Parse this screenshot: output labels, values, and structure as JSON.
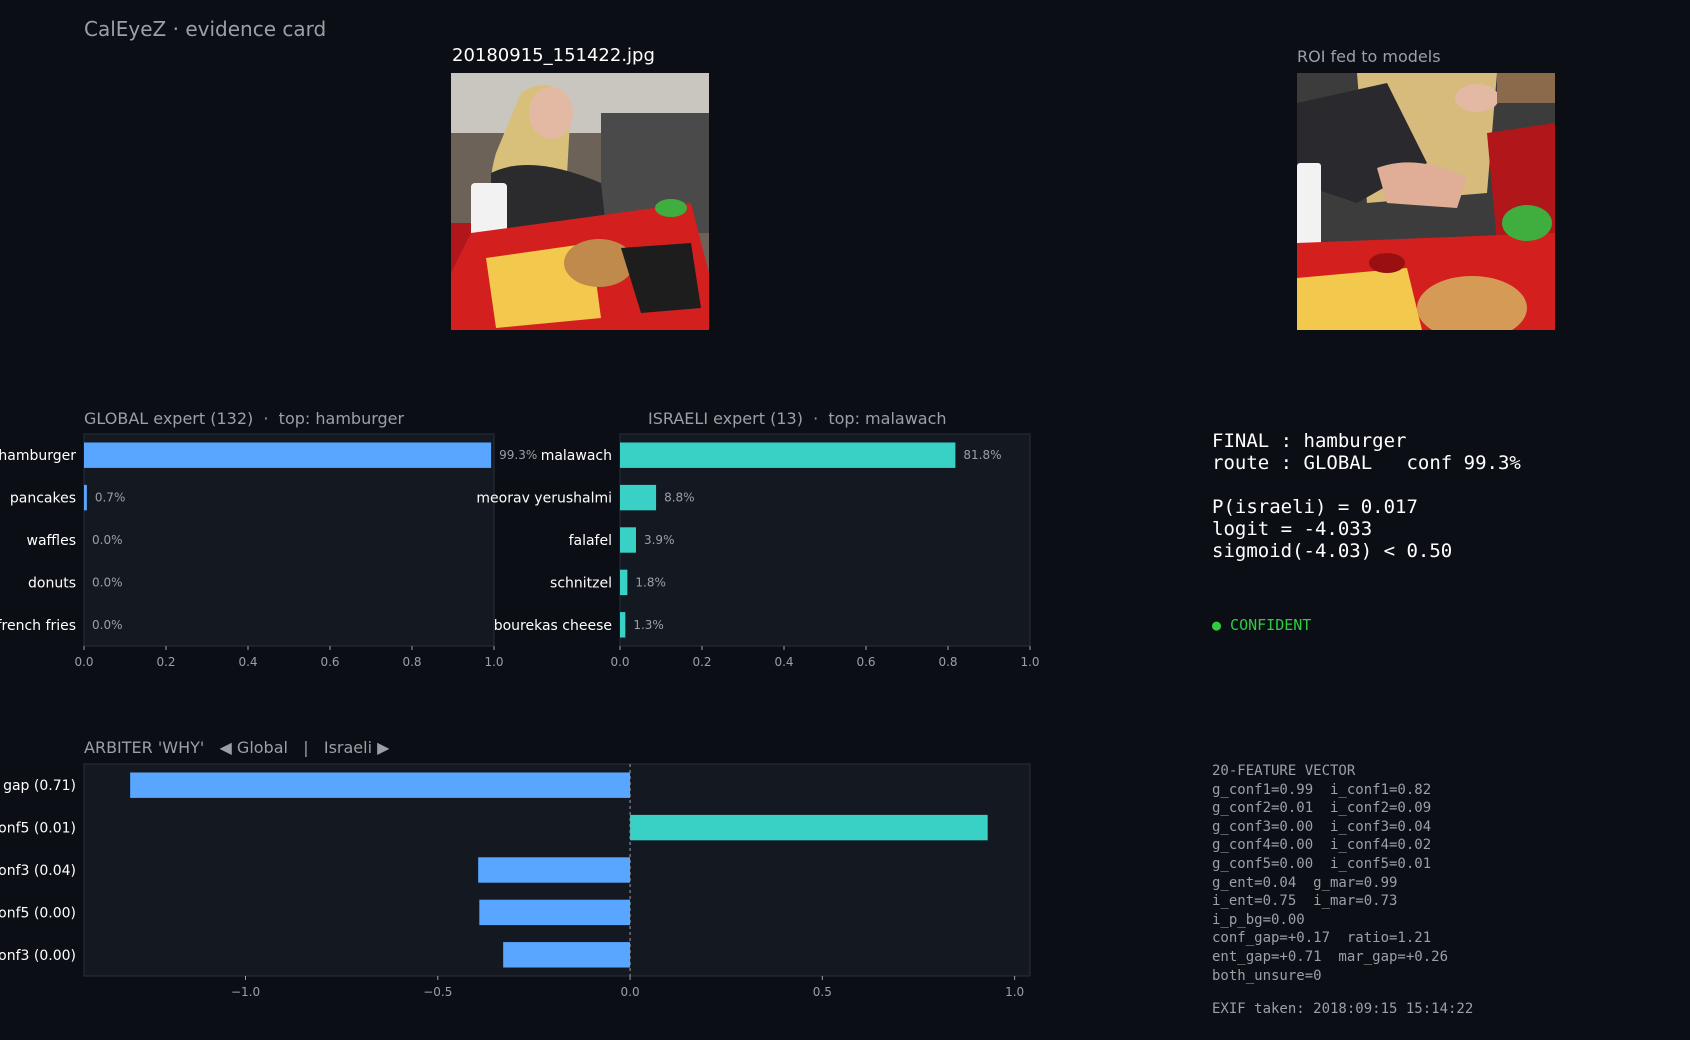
{
  "header": {
    "title": "CalEyeZ · evidence card"
  },
  "images": {
    "main_title": "20180915_151422.jpg",
    "roi_title": "ROI fed to models"
  },
  "colors": {
    "background": "#0b0e14",
    "panel": "#131821",
    "global_bar": "#58a6ff",
    "israeli_bar": "#39d0c5",
    "confident": "#2ecc40"
  },
  "chart_data": [
    {
      "type": "bar",
      "orientation": "horizontal",
      "title": "GLOBAL expert (132)  ·  top: hamburger",
      "categories": [
        "hamburger",
        "pancakes",
        "waffles",
        "donuts",
        "french fries"
      ],
      "values": [
        0.993,
        0.007,
        0.0,
        0.0,
        0.0
      ],
      "data_labels": [
        "99.3%",
        "0.7%",
        "0.0%",
        "0.0%",
        "0.0%"
      ],
      "xlim": [
        0,
        1
      ],
      "xticks": [
        "0.0",
        "0.2",
        "0.4",
        "0.6",
        "0.8",
        "1.0"
      ]
    },
    {
      "type": "bar",
      "orientation": "horizontal",
      "title": "ISRAELI expert (13)  ·  top: malawach",
      "categories": [
        "malawach",
        "meorav yerushalmi",
        "falafel",
        "schnitzel",
        "bourekas cheese"
      ],
      "values": [
        0.818,
        0.088,
        0.039,
        0.018,
        0.013
      ],
      "data_labels": [
        "81.8%",
        "8.8%",
        "3.9%",
        "1.8%",
        "1.3%"
      ],
      "xlim": [
        0,
        1
      ],
      "xticks": [
        "0.0",
        "0.2",
        "0.4",
        "0.6",
        "0.8",
        "1.0"
      ]
    },
    {
      "type": "bar",
      "orientation": "horizontal",
      "title": "ARBITER 'WHY'   ◀ Global   |   Israeli ▶",
      "categories": [
        "gap (0.71)",
        "onf5 (0.01)",
        "onf3 (0.04)",
        "onf5 (0.00)",
        "onf3 (0.00)"
      ],
      "values": [
        -1.3,
        0.93,
        -0.395,
        -0.392,
        -0.33
      ],
      "xlim": [
        -1.42,
        1.04
      ],
      "xticks": [
        "−1.0",
        "−0.5",
        "0.0",
        "0.5",
        "1.0"
      ],
      "xtick_values": [
        -1.0,
        -0.5,
        0.0,
        0.5,
        1.0
      ]
    }
  ],
  "verdict": {
    "lines": "FINAL : hamburger\nroute : GLOBAL   conf 99.3%\n\nP(israeli) = 0.017\nlogit = -4.033\nsigmoid(-4.03) < 0.50",
    "status": "● CONFIDENT"
  },
  "features": {
    "text": "20-FEATURE VECTOR\ng_conf1=0.99  i_conf1=0.82\ng_conf2=0.01  i_conf2=0.09\ng_conf3=0.00  i_conf3=0.04\ng_conf4=0.00  i_conf4=0.02\ng_conf5=0.00  i_conf5=0.01\ng_ent=0.04  g_mar=0.99\ni_ent=0.75  i_mar=0.73\ni_p_bg=0.00\nconf_gap=+0.17  ratio=1.21\nent_gap=+0.71  mar_gap=+0.26\nboth_unsure=0"
  },
  "exif": {
    "text": "EXIF taken: 2018:09:15 15:14:22"
  }
}
